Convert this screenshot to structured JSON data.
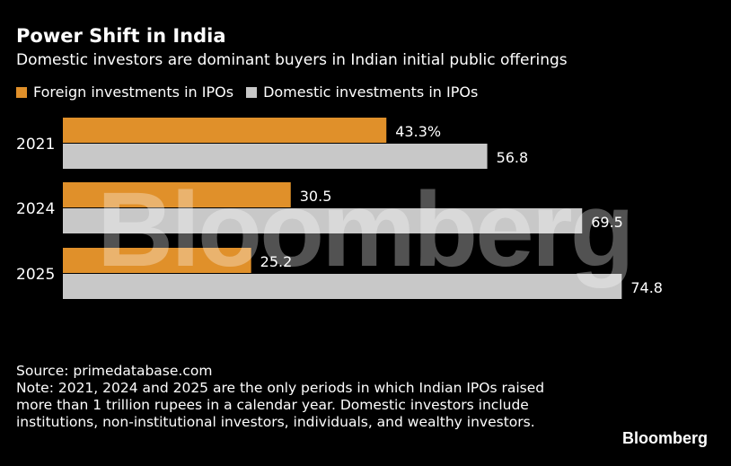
{
  "title": "Power Shift in India",
  "subtitle": "Domestic investors are dominant buyers in Indian initial public offerings",
  "chart_data": {
    "type": "bar",
    "orientation": "horizontal",
    "categories": [
      "2021",
      "2024",
      "2025"
    ],
    "series": [
      {
        "name": "Foreign investments in IPOs",
        "values": [
          43.3,
          30.5,
          25.2
        ],
        "labels": [
          "43.3%",
          "30.5",
          "25.2"
        ],
        "color": "#e0902a"
      },
      {
        "name": "Domestic investments in IPOs",
        "values": [
          56.8,
          69.5,
          74.8
        ],
        "labels": [
          "56.8",
          "69.5",
          "74.8"
        ],
        "color": "#c8c8c8"
      }
    ],
    "xlim": [
      0,
      100
    ],
    "grid": false,
    "legend": "top-left"
  },
  "footer": {
    "source": "Source: primedatabase.com",
    "note": "Note: 2021, 2024 and 2025 are the only periods in which Indian IPOs raised more than 1 trillion rupees in a calendar year. Domestic investors include institutions, non-institutional investors, individuals, and wealthy investors."
  },
  "watermark": "Bloomberg",
  "brand": "Bloomberg"
}
